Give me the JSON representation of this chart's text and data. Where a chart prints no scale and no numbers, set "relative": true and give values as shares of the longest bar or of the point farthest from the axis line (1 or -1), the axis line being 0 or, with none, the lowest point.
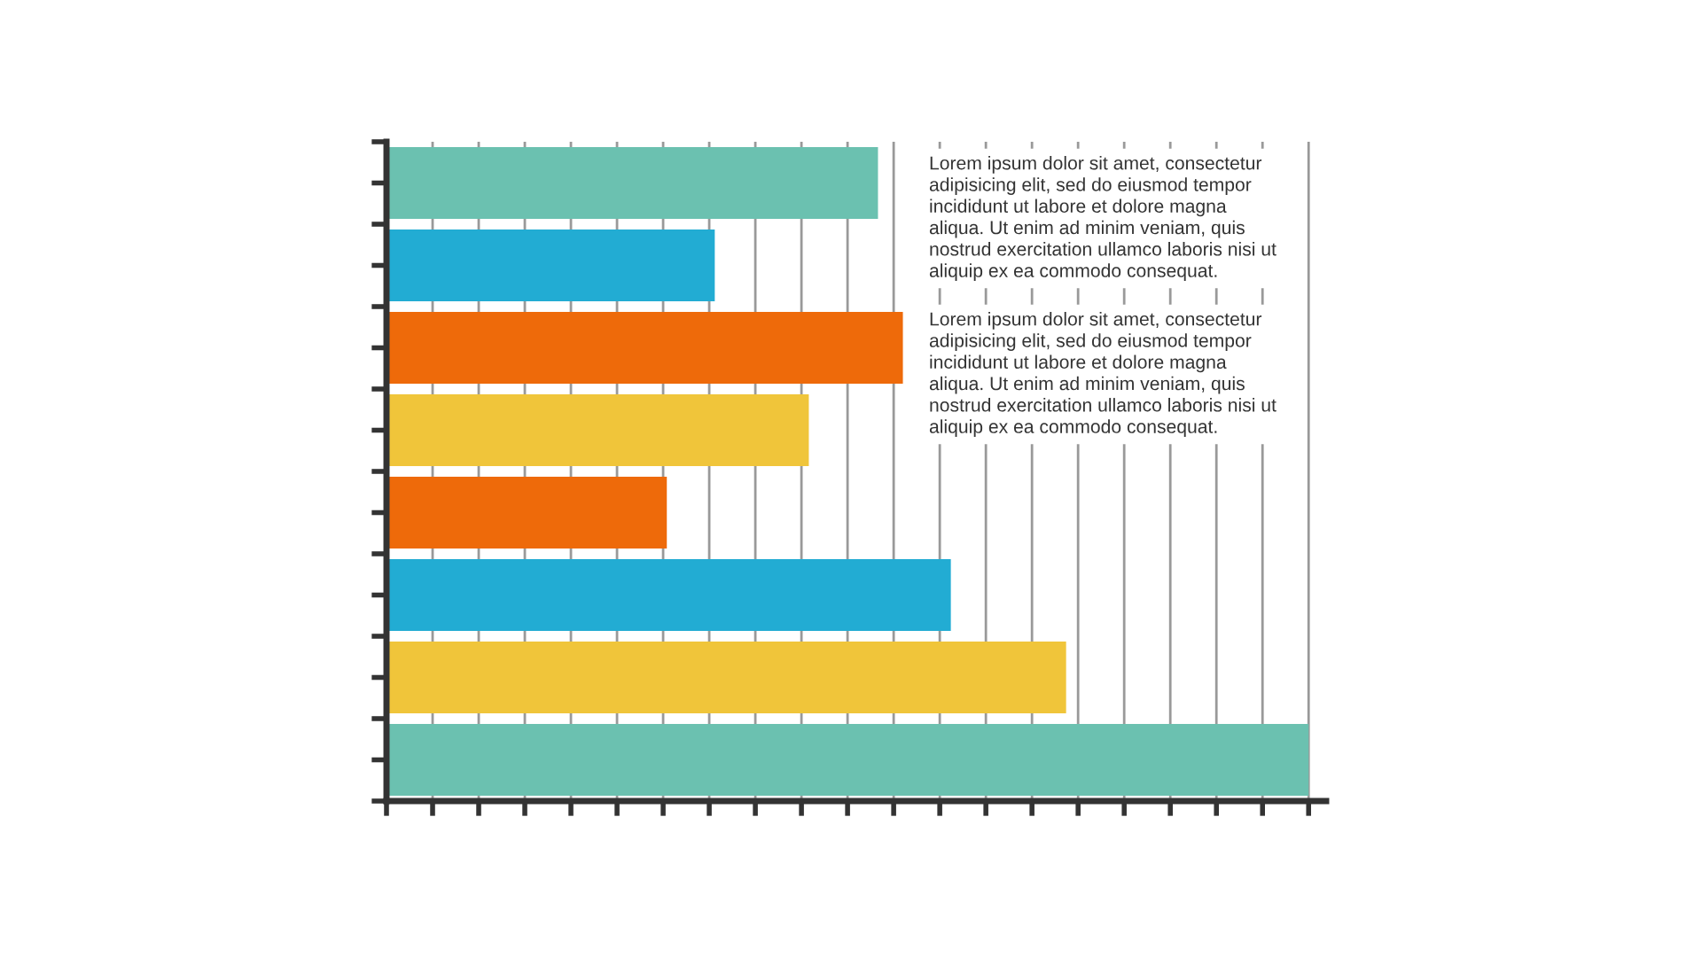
{
  "chart_data": {
    "type": "bar",
    "orientation": "horizontal",
    "relative": true,
    "grid": "x",
    "tick_labels": false,
    "categories": [
      null,
      null,
      null,
      null,
      null,
      null,
      null,
      null
    ],
    "values": [
      0.533,
      0.356,
      0.56,
      0.458,
      0.304,
      0.612,
      0.737,
      1
    ],
    "colors": [
      "#6bc1b0",
      "#22acd3",
      "#ee6a0a",
      "#f0c53a",
      "#ee6a0a",
      "#22acd3",
      "#f0c53a",
      "#6bc1b0"
    ],
    "annotations": [
      "Lorem ipsum dolor sit amet, consectetur\nadipisicing elit, sed do eiusmod tempor\nincididunt ut labore et dolore magna\naliqua. Ut enim ad minim veniam, quis\nnostrud exercitation ullamco laboris nisi ut\naliquip ex ea commodo consequat.",
      "Lorem ipsum dolor sit amet, consectetur\nadipisicing elit, sed do eiusmod tempor\nincididunt ut labore et dolore magna\naliqua. Ut enim ad minim veniam, quis\nnostrud exercitation ullamco laboris nisi ut\naliquip ex ea commodo consequat."
    ]
  }
}
